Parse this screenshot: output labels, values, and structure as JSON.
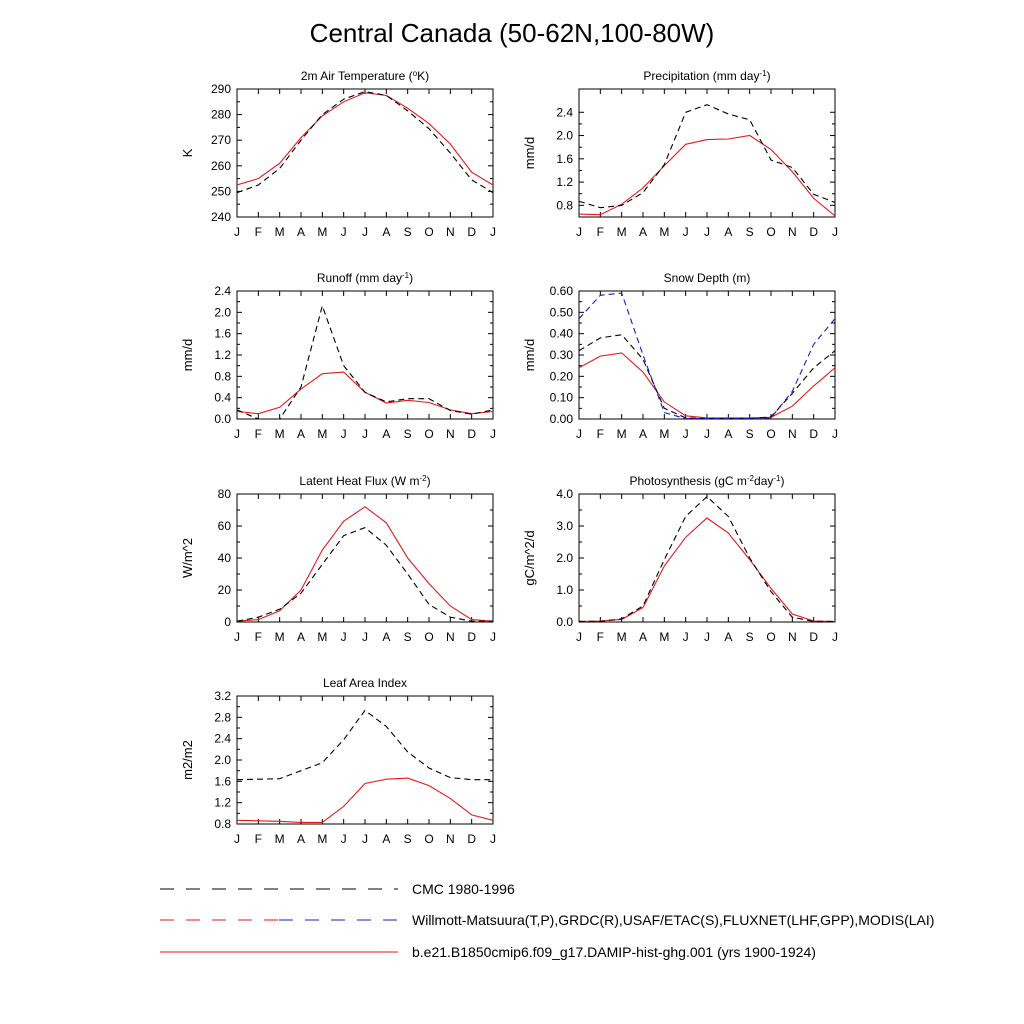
{
  "title": "Central Canada (50-62N,100-80W)",
  "months": [
    "J",
    "F",
    "M",
    "A",
    "M",
    "J",
    "J",
    "A",
    "S",
    "O",
    "N",
    "D",
    "J"
  ],
  "colors": {
    "model": "#e31a1c",
    "obs": "#000000",
    "obs2": "#1a1acd"
  },
  "legend": [
    {
      "label": "CMC 1980-1996",
      "style": "dash-black"
    },
    {
      "label": "Willmott-Matsuura(T,P),GRDC(R),USAF/ETAC(S),FLUXNET(LHF,GPP),MODIS(LAI)",
      "style": "dash-red-blue"
    },
    {
      "label": "b.e21.B1850cmip6.f09_g17.DAMIP-hist-ghg.001 (yrs 1900-1924)",
      "style": "solid-red"
    }
  ],
  "chart_data": [
    {
      "type": "line",
      "title": "2m Air Temperature (°K)",
      "ylabel": "K",
      "ylim": [
        240,
        290
      ],
      "yticks": [
        "240",
        "250",
        "260",
        "270",
        "280",
        "290"
      ],
      "series": [
        {
          "values": [
            252.5,
            255,
            261,
            271,
            279.5,
            285,
            288.5,
            287.5,
            282.5,
            276.5,
            268.5,
            257.5,
            252.5
          ],
          "style": "solid-red"
        },
        {
          "values": [
            249.5,
            252.5,
            259,
            270,
            280,
            286,
            289,
            287.5,
            281.5,
            274.5,
            265,
            254.5,
            249.5
          ],
          "style": "dash-black"
        }
      ]
    },
    {
      "type": "line",
      "title": "Precipitation (mm day-1)",
      "ylabel": "mm/d",
      "ylim": [
        0.6,
        2.8
      ],
      "yticks": [
        "0.8",
        "1.2",
        "1.6",
        "2.0",
        "2.4"
      ],
      "series": [
        {
          "values": [
            0.65,
            0.64,
            0.82,
            1.1,
            1.48,
            1.85,
            1.93,
            1.94,
            2.0,
            1.76,
            1.38,
            0.92,
            0.62
          ],
          "style": "solid-red"
        },
        {
          "values": [
            0.87,
            0.76,
            0.8,
            1.02,
            1.5,
            2.4,
            2.53,
            2.37,
            2.27,
            1.58,
            1.45,
            0.99,
            0.85
          ],
          "style": "dash-black"
        }
      ]
    },
    {
      "type": "line",
      "title": "Runoff (mm day-1)",
      "ylabel": "mm/d",
      "ylim": [
        0,
        2.4
      ],
      "yticks": [
        "0.0",
        "0.4",
        "0.8",
        "1.2",
        "1.6",
        "2.0",
        "2.4"
      ],
      "series": [
        {
          "values": [
            0.14,
            0.1,
            0.22,
            0.56,
            0.85,
            0.88,
            0.5,
            0.3,
            0.35,
            0.31,
            0.17,
            0.1,
            0.14
          ],
          "style": "solid-red"
        },
        {
          "values": [
            0.17,
            0.0,
            0.0,
            0.6,
            2.12,
            1.0,
            0.5,
            0.32,
            0.38,
            0.38,
            0.16,
            0.09,
            0.17
          ],
          "style": "dash-black"
        }
      ]
    },
    {
      "type": "line",
      "title": "Snow Depth (m)",
      "ylabel": "mm/d",
      "ylim": [
        0,
        0.6
      ],
      "yticks": [
        "0.00",
        "0.10",
        "0.20",
        "0.30",
        "0.40",
        "0.50",
        "0.60"
      ],
      "series": [
        {
          "values": [
            0.24,
            0.295,
            0.31,
            0.22,
            0.08,
            0.015,
            0.005,
            0.005,
            0.005,
            0.008,
            0.06,
            0.155,
            0.24
          ],
          "style": "solid-red"
        },
        {
          "values": [
            0.32,
            0.38,
            0.395,
            0.28,
            0.05,
            0.005,
            0.002,
            0.002,
            0.002,
            0.01,
            0.12,
            0.24,
            0.32
          ],
          "style": "dash-black"
        },
        {
          "values": [
            0.47,
            0.58,
            0.59,
            0.3,
            0.03,
            0.002,
            0.002,
            0.002,
            0.002,
            0.005,
            0.13,
            0.35,
            0.47
          ],
          "style": "dash-blue"
        }
      ]
    },
    {
      "type": "line",
      "title": "Latent Heat Flux (W m-2)",
      "ylabel": "W/m^2",
      "ylim": [
        0,
        80
      ],
      "yticks": [
        "0",
        "20",
        "40",
        "60",
        "80"
      ],
      "series": [
        {
          "values": [
            0.5,
            1.5,
            7,
            20,
            45,
            63,
            72,
            62,
            40,
            24,
            10,
            1.5,
            0.5
          ],
          "style": "solid-red"
        },
        {
          "values": [
            0.5,
            3,
            8,
            18,
            36,
            54,
            59,
            48,
            30,
            11,
            3,
            0.5,
            0.5
          ],
          "style": "dash-black"
        }
      ]
    },
    {
      "type": "line",
      "title": "Photosynthesis (gC m-2day-1)",
      "ylabel": "gC/m^2/d",
      "ylim": [
        0,
        4
      ],
      "yticks": [
        "0.0",
        "1.0",
        "2.0",
        "3.0",
        "4.0"
      ],
      "series": [
        {
          "values": [
            0.02,
            0.03,
            0.08,
            0.45,
            1.75,
            2.65,
            3.25,
            2.78,
            1.95,
            1.05,
            0.25,
            0.03,
            0.02
          ],
          "style": "solid-red"
        },
        {
          "values": [
            0.02,
            0.02,
            0.1,
            0.5,
            1.95,
            3.3,
            3.92,
            3.3,
            2.0,
            0.95,
            0.15,
            0.02,
            0.02
          ],
          "style": "dash-black"
        }
      ]
    },
    {
      "type": "line",
      "title": "Leaf Area Index",
      "ylabel": "m2/m2",
      "ylim": [
        0.8,
        3.2
      ],
      "yticks": [
        "0.8",
        "1.2",
        "1.6",
        "2.0",
        "2.4",
        "2.8",
        "3.2"
      ],
      "series": [
        {
          "values": [
            0.87,
            0.86,
            0.85,
            0.83,
            0.83,
            1.13,
            1.56,
            1.64,
            1.66,
            1.52,
            1.28,
            0.97,
            0.87
          ],
          "style": "solid-red"
        },
        {
          "values": [
            1.63,
            1.64,
            1.65,
            1.8,
            1.95,
            2.38,
            2.93,
            2.63,
            2.15,
            1.85,
            1.67,
            1.63,
            1.63
          ],
          "style": "dash-black"
        }
      ]
    }
  ]
}
